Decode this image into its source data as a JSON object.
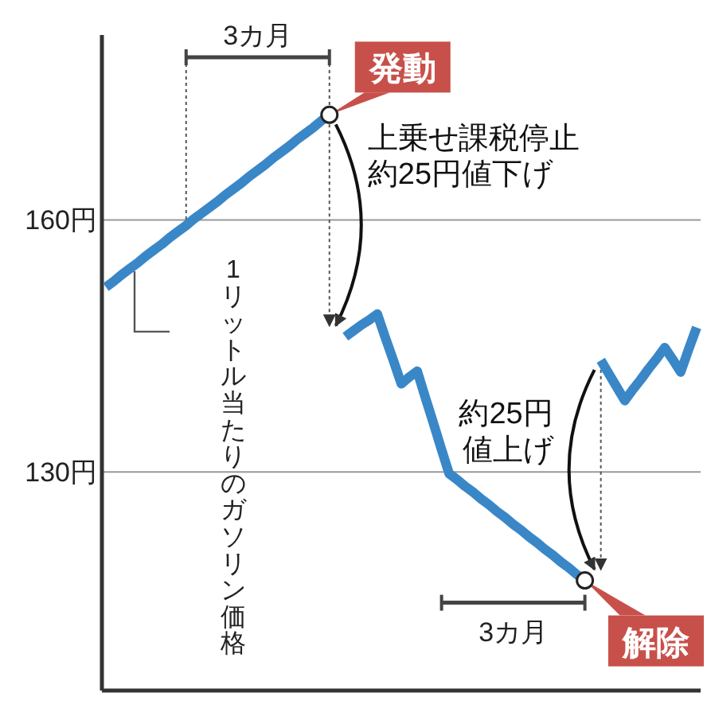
{
  "chart_data": {
    "type": "line",
    "ylim": [
      104,
      182
    ],
    "yticks": [
      {
        "value": 130,
        "label": "130円"
      },
      {
        "value": 160,
        "label": "160円"
      }
    ],
    "grid": "y",
    "categories": [
      null,
      null,
      null,
      null,
      null,
      null,
      null,
      null,
      null,
      null,
      null,
      null,
      null,
      null,
      null,
      null,
      null,
      null,
      null,
      null,
      null,
      null,
      null,
      null,
      null,
      null,
      null,
      null,
      null,
      null,
      null,
      null,
      null,
      null,
      null,
      null,
      null,
      null,
      null,
      null,
      null,
      null,
      null,
      null,
      null,
      null,
      null,
      null,
      null,
      null,
      null,
      null,
      null,
      null,
      null,
      null,
      null,
      null,
      null,
      null,
      null,
      null,
      null,
      null,
      null,
      null,
      null,
      null,
      null,
      null,
      null,
      null,
      null,
      null,
      null
    ],
    "series": [
      {
        "name": "1リットル当たりのガソリン価格",
        "color": "#3a87c8",
        "values": [
          152,
          152.7,
          153.5,
          154.2,
          154.9,
          155.7,
          156.4,
          157.1,
          157.9,
          158.6,
          159.3,
          160.1,
          160.8,
          161.5,
          162.2,
          163,
          163.7,
          164.4,
          165.2,
          165.9,
          166.6,
          167.4,
          168.1,
          168.8,
          169.6,
          170.3,
          171,
          171.8,
          172.5,
          null,
          146.1,
          146.8,
          147.5,
          148.1,
          148.8,
          146,
          143.3,
          140.5,
          141.3,
          142,
          138.9,
          135.9,
          132.8,
          129.8,
          129.1,
          128.3,
          127.6,
          126.8,
          126.1,
          125.3,
          124.6,
          123.8,
          123.1,
          122.3,
          121.6,
          120.8,
          120.1,
          119.3,
          118.6,
          117.8,
          117.1,
          null,
          143.3,
          141.7,
          140.1,
          138.5,
          139.8,
          141,
          142.3,
          143.5,
          144.8,
          143.4,
          141.9,
          144.6,
          147.2
        ]
      }
    ],
    "annotations": [
      "3カ月",
      "発動",
      "上乗せ課税停止約25円値下げ",
      "3カ月",
      "解除",
      "約25円値上げ"
    ]
  }
}
